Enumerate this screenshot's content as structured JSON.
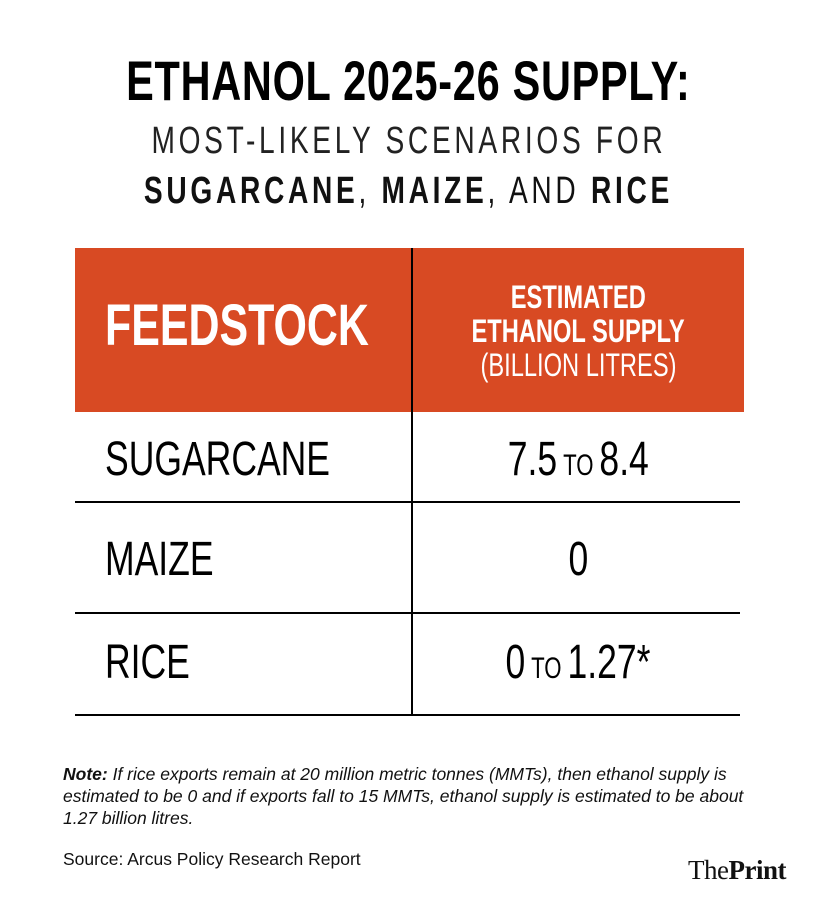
{
  "header": {
    "title": "ETHANOL 2025-26 SUPPLY:",
    "subtitle": "MOST-LIKELY SCENARIOS FOR",
    "crops": [
      "SUGARCANE",
      ", ",
      "MAIZE",
      ", AND ",
      "RICE"
    ]
  },
  "table": {
    "columns": {
      "feedstock": "FEEDSTOCK",
      "supply": [
        "ESTIMATED",
        "ETHANOL SUPPLY",
        "(BILLION LITRES)"
      ]
    },
    "rows": [
      {
        "feedstock": "SUGARCANE",
        "supply": [
          "7.5",
          "TO",
          "8.4"
        ]
      },
      {
        "feedstock": "MAIZE",
        "supply": [
          "0"
        ]
      },
      {
        "feedstock": "RICE",
        "supply": [
          "0",
          "TO",
          "1.27*"
        ]
      }
    ]
  },
  "note": {
    "label": "Note:",
    "text": "If rice exports remain at 20 million metric tonnes (MMTs), then ethanol supply is estimated to be 0 and if exports fall to 15 MMTs, ethanol supply is estimated to be about 1.27 billion litres."
  },
  "source": "Source: Arcus Policy Research Report",
  "logo": [
    "The",
    "Print"
  ]
}
